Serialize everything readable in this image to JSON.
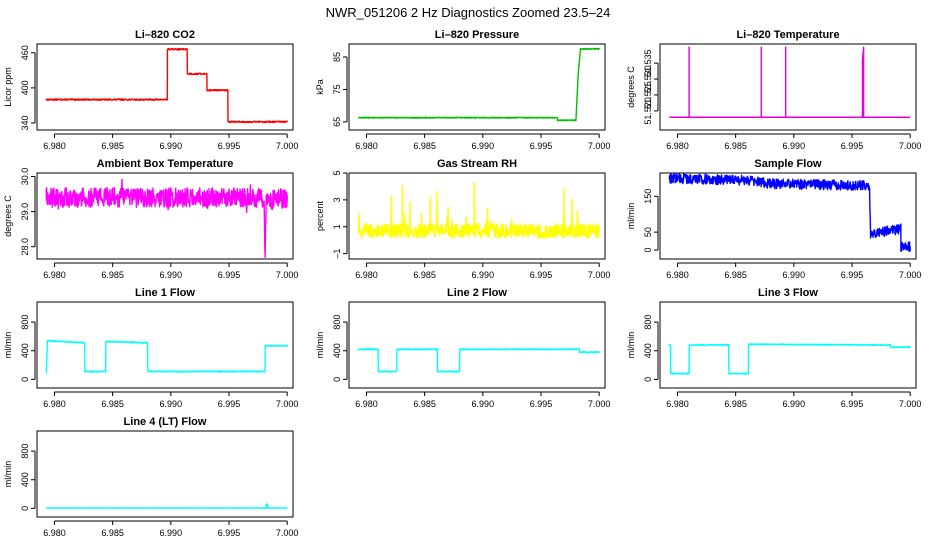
{
  "page_title": "NWR_051206  2 Hz Diagnostics Zoomed 23.5–24",
  "chart_data": [
    {
      "type": "line",
      "title": "Li–820 CO2",
      "ylabel": "Licor ppm",
      "color": "#ff0000",
      "xlim": [
        6.9785,
        7.0005
      ],
      "xticks": [
        6.98,
        6.985,
        6.99,
        6.995,
        7.0
      ],
      "xtick_labels": [
        "6.980",
        "6.985",
        "6.990",
        "6.995",
        "7.000"
      ],
      "ylim": [
        328,
        475
      ],
      "yticks": [
        340,
        400,
        460
      ],
      "ytick_labels": [
        "340",
        "400",
        "460"
      ],
      "noise": 1.2,
      "series": [
        {
          "name": "CO2",
          "x": [
            6.9793,
            6.9897,
            6.9897,
            6.9914,
            6.9914,
            6.9931,
            6.9931,
            6.9949,
            6.9949,
            7.0
          ],
          "y": [
            380,
            380,
            466,
            466,
            424,
            424,
            396,
            396,
            342,
            342
          ]
        }
      ]
    },
    {
      "type": "line",
      "title": "Li–820 Pressure",
      "ylabel": "kPa",
      "color": "#00c000",
      "xlim": [
        6.9785,
        7.0005
      ],
      "xticks": [
        6.98,
        6.985,
        6.99,
        6.995,
        7.0
      ],
      "xtick_labels": [
        "6.980",
        "6.985",
        "6.990",
        "6.995",
        "7.000"
      ],
      "ylim": [
        62.5,
        89
      ],
      "yticks": [
        65,
        75,
        85
      ],
      "ytick_labels": [
        "65",
        "75",
        "85"
      ],
      "noise": 0.15,
      "series": [
        {
          "name": "Pressure",
          "x": [
            6.9793,
            6.9964,
            6.9964,
            6.998,
            6.9982,
            6.9984,
            7.0
          ],
          "y": [
            66.3,
            66.3,
            65.5,
            65.5,
            80,
            87.5,
            87.5
          ]
        }
      ]
    },
    {
      "type": "line",
      "title": "Li–820 Temperature",
      "ylabel": "degrees C",
      "color": "#e000e0",
      "xlim": [
        6.9785,
        7.0005
      ],
      "xticks": [
        6.98,
        6.985,
        6.99,
        6.995,
        7.0
      ],
      "xtick_labels": [
        "6.980",
        "6.985",
        "6.990",
        "6.995",
        "7.000"
      ],
      "ylim": [
        51.514,
        51.541
      ],
      "yticks": [
        51.52,
        51.525,
        51.53,
        51.535
      ],
      "ytick_labels": [
        "51.520",
        "51.525",
        "51.530",
        "51.535"
      ],
      "noise": 0,
      "series": [
        {
          "name": "Temperature",
          "x": [
            6.9793,
            6.981,
            6.981,
            6.981,
            6.9872,
            6.9872,
            6.9872,
            6.9872,
            6.9893,
            6.9893,
            6.9893,
            6.9959,
            6.9959,
            6.996,
            6.996,
            7.0
          ],
          "y": [
            51.518,
            51.518,
            51.54,
            51.518,
            51.518,
            51.533,
            51.54,
            51.518,
            51.518,
            51.54,
            51.518,
            51.518,
            51.536,
            51.54,
            51.518,
            51.518
          ]
        }
      ]
    },
    {
      "type": "line",
      "title": "Ambient Box Temperature",
      "ylabel": "degrees C",
      "color": "#ff00ff",
      "xlim": [
        6.9785,
        7.0005
      ],
      "xticks": [
        6.98,
        6.985,
        6.99,
        6.995,
        7.0
      ],
      "xtick_labels": [
        "6.980",
        "6.985",
        "6.990",
        "6.995",
        "7.000"
      ],
      "ylim": [
        27.65,
        30.1
      ],
      "yticks": [
        28.0,
        29.0,
        30.0
      ],
      "ytick_labels": [
        "28.0",
        "29.0",
        "30.0"
      ],
      "noise": 0.28,
      "series": [
        {
          "name": "Box temperature",
          "x": [
            6.9793,
            6.998,
            6.9981,
            6.9982,
            7.0
          ],
          "y": [
            29.4,
            29.4,
            27.8,
            29.3,
            29.4
          ]
        }
      ]
    },
    {
      "type": "line",
      "title": "Gas Stream RH",
      "ylabel": "percent",
      "color": "#ffff00",
      "xlim": [
        6.9785,
        7.0005
      ],
      "xticks": [
        6.98,
        6.985,
        6.99,
        6.995,
        7.0
      ],
      "xtick_labels": [
        "6.980",
        "6.985",
        "6.990",
        "6.995",
        "7.000"
      ],
      "ylim": [
        -1.4,
        5.0
      ],
      "yticks": [
        -1,
        1,
        3,
        5
      ],
      "ytick_labels": [
        "–1",
        "1",
        "3",
        "5"
      ],
      "noise": 0.55,
      "series": [
        {
          "name": "RH",
          "x": [
            6.9793,
            7.0
          ],
          "y": [
            0.7,
            0.7
          ]
        }
      ]
    },
    {
      "type": "line",
      "title": "Sample Flow",
      "ylabel": "ml/min",
      "color": "#0000ff",
      "xlim": [
        6.9785,
        7.0005
      ],
      "xticks": [
        6.98,
        6.985,
        6.99,
        6.995,
        7.0
      ],
      "xtick_labels": [
        "6.980",
        "6.985",
        "6.990",
        "6.995",
        "7.000"
      ],
      "ylim": [
        -25,
        215
      ],
      "yticks": [
        0,
        50,
        150
      ],
      "ytick_labels": [
        "0",
        "50",
        "150"
      ],
      "noise": 14,
      "series": [
        {
          "name": "Sample flow",
          "x": [
            6.9793,
            6.986,
            6.988,
            6.9965,
            6.9966,
            6.9985,
            6.9992,
            6.9992,
            7.0
          ],
          "y": [
            200,
            195,
            185,
            180,
            45,
            55,
            60,
            10,
            10
          ]
        }
      ]
    },
    {
      "type": "line",
      "title": "Line 1 Flow",
      "ylabel": "ml/min",
      "color": "#00ffff",
      "xlim": [
        6.9785,
        7.0005
      ],
      "xticks": [
        6.98,
        6.985,
        6.99,
        6.995,
        7.0
      ],
      "xtick_labels": [
        "6.980",
        "6.985",
        "6.990",
        "6.995",
        "7.000"
      ],
      "ylim": [
        -120,
        1080
      ],
      "yticks": [
        0,
        400,
        800
      ],
      "ytick_labels": [
        "0",
        "400",
        "800"
      ],
      "noise": 7,
      "series": [
        {
          "name": "Line 1",
          "x": [
            6.9793,
            6.9794,
            6.9826,
            6.9826,
            6.9844,
            6.9844,
            6.988,
            6.988,
            6.9981,
            6.9981,
            7.0
          ],
          "y": [
            100,
            540,
            510,
            110,
            110,
            530,
            510,
            110,
            110,
            470,
            470
          ]
        }
      ]
    },
    {
      "type": "line",
      "title": "Line 2 Flow",
      "ylabel": "ml/min",
      "color": "#00ffff",
      "xlim": [
        6.9785,
        7.0005
      ],
      "xticks": [
        6.98,
        6.985,
        6.99,
        6.995,
        7.0
      ],
      "xtick_labels": [
        "6.980",
        "6.985",
        "6.990",
        "6.995",
        "7.000"
      ],
      "ylim": [
        -120,
        1080
      ],
      "yticks": [
        0,
        400,
        800
      ],
      "ytick_labels": [
        "0",
        "400",
        "800"
      ],
      "noise": 7,
      "series": [
        {
          "name": "Line 2",
          "x": [
            6.9793,
            6.981,
            6.981,
            6.9826,
            6.9826,
            6.9861,
            6.9861,
            6.988,
            6.988,
            6.9983,
            6.9983,
            7.0
          ],
          "y": [
            420,
            420,
            110,
            110,
            420,
            420,
            110,
            110,
            420,
            420,
            380,
            380
          ]
        }
      ]
    },
    {
      "type": "line",
      "title": "Line 3 Flow",
      "ylabel": "ml/min",
      "color": "#00ffff",
      "xlim": [
        6.9785,
        7.0005
      ],
      "xticks": [
        6.98,
        6.985,
        6.99,
        6.995,
        7.0
      ],
      "xtick_labels": [
        "6.980",
        "6.985",
        "6.990",
        "6.995",
        "7.000"
      ],
      "ylim": [
        -120,
        1080
      ],
      "yticks": [
        0,
        400,
        800
      ],
      "ytick_labels": [
        "0",
        "400",
        "800"
      ],
      "noise": 7,
      "series": [
        {
          "name": "Line 3",
          "x": [
            6.9793,
            6.9794,
            6.9794,
            6.981,
            6.981,
            6.9844,
            6.9844,
            6.9861,
            6.9861,
            6.9983,
            6.9983,
            7.0
          ],
          "y": [
            480,
            480,
            80,
            80,
            480,
            480,
            80,
            80,
            490,
            480,
            450,
            450
          ]
        }
      ]
    },
    {
      "type": "line",
      "title": "Line 4 (LT) Flow",
      "ylabel": "ml/min",
      "color": "#00ffff",
      "xlim": [
        6.9785,
        7.0005
      ],
      "xticks": [
        6.98,
        6.985,
        6.99,
        6.995,
        7.0
      ],
      "xtick_labels": [
        "6.980",
        "6.985",
        "6.990",
        "6.995",
        "7.000"
      ],
      "ylim": [
        -120,
        1080
      ],
      "yticks": [
        0,
        400,
        800
      ],
      "ytick_labels": [
        "0",
        "400",
        "800"
      ],
      "noise": 2,
      "series": [
        {
          "name": "Line 4",
          "x": [
            6.9793,
            6.9982,
            6.9982,
            6.9983,
            6.9983,
            7.0
          ],
          "y": [
            5,
            5,
            60,
            60,
            5,
            5
          ]
        }
      ]
    }
  ]
}
